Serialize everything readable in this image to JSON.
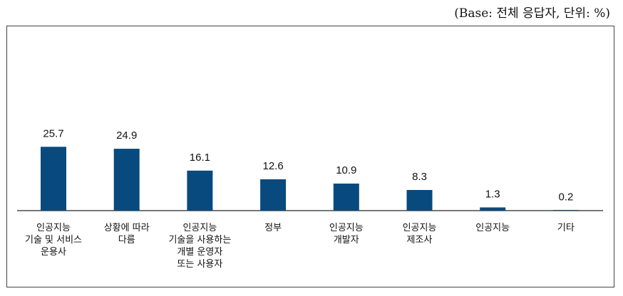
{
  "note": "(Base: 전체 응답자, 단위: %)",
  "chart_data": {
    "type": "bar",
    "title": "",
    "xlabel": "",
    "ylabel": "",
    "unit": "%",
    "ylim": [
      0,
      30
    ],
    "grid": false,
    "bar_color": "#084a7d",
    "categories": [
      "인공지능\n기술 및 서비스\n운용사",
      "상황에 따라\n다름",
      "인공지능\n기술을 사용하는\n개별 운영자\n또는 사용자",
      "정부",
      "인공지능\n개발자",
      "인공지능\n제조사",
      "인공지능",
      "기타"
    ],
    "values": [
      25.7,
      24.9,
      16.1,
      12.6,
      10.9,
      8.3,
      1.3,
      0.2
    ],
    "labels": [
      "25.7",
      "24.9",
      "16.1",
      "12.6",
      "10.9",
      "8.3",
      "1.3",
      "0.2"
    ]
  }
}
